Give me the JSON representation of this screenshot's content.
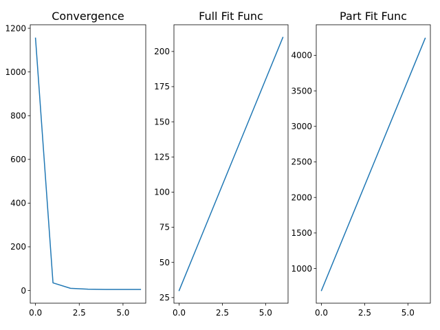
{
  "chart_data": [
    {
      "type": "line",
      "title": "Convergence",
      "xlabel": "",
      "ylabel": "",
      "xlim": [
        -0.3,
        6.3
      ],
      "ylim": [
        -58,
        1216
      ],
      "xticks": [
        0.0,
        2.5,
        5.0
      ],
      "xtick_labels": [
        "0.0",
        "2.5",
        "5.0"
      ],
      "yticks": [
        0,
        200,
        400,
        600,
        800,
        1000,
        1200
      ],
      "ytick_labels": [
        "0",
        "200",
        "400",
        "600",
        "800",
        "1000",
        "1200"
      ],
      "grid": false,
      "color": "#1f77b4",
      "series": [
        {
          "x": [
            0,
            1,
            2,
            3,
            4,
            5,
            6
          ],
          "y": [
            1155,
            35,
            10,
            6,
            5,
            5,
            5
          ]
        }
      ]
    },
    {
      "type": "line",
      "title": "Full Fit Func",
      "xlabel": "",
      "ylabel": "",
      "xlim": [
        -0.3,
        6.3
      ],
      "ylim": [
        21,
        219
      ],
      "xticks": [
        0.0,
        2.5,
        5.0
      ],
      "xtick_labels": [
        "0.0",
        "2.5",
        "5.0"
      ],
      "yticks": [
        25,
        50,
        75,
        100,
        125,
        150,
        175,
        200
      ],
      "ytick_labels": [
        "25",
        "50",
        "75",
        "100",
        "125",
        "150",
        "175",
        "200"
      ],
      "grid": false,
      "color": "#1f77b4",
      "series": [
        {
          "x": [
            0,
            1,
            2,
            3,
            4,
            5,
            6
          ],
          "y": [
            30,
            60,
            90,
            120,
            150,
            180,
            210
          ]
        }
      ]
    },
    {
      "type": "line",
      "title": "Part Fit Func",
      "xlabel": "",
      "ylabel": "",
      "xlim": [
        -0.3,
        6.3
      ],
      "ylim": [
        512,
        4430
      ],
      "xticks": [
        0.0,
        2.5,
        5.0
      ],
      "xtick_labels": [
        "0.0",
        "2.5",
        "5.0"
      ],
      "yticks": [
        1000,
        1500,
        2000,
        2500,
        3000,
        3500,
        4000
      ],
      "ytick_labels": [
        "1000",
        "1500",
        "2000",
        "2500",
        "3000",
        "3500",
        "4000"
      ],
      "grid": false,
      "color": "#1f77b4",
      "series": [
        {
          "x": [
            0,
            1,
            2,
            3,
            4,
            5,
            6
          ],
          "y": [
            690,
            1282,
            1873,
            2465,
            3057,
            3648,
            4240
          ]
        }
      ]
    }
  ]
}
